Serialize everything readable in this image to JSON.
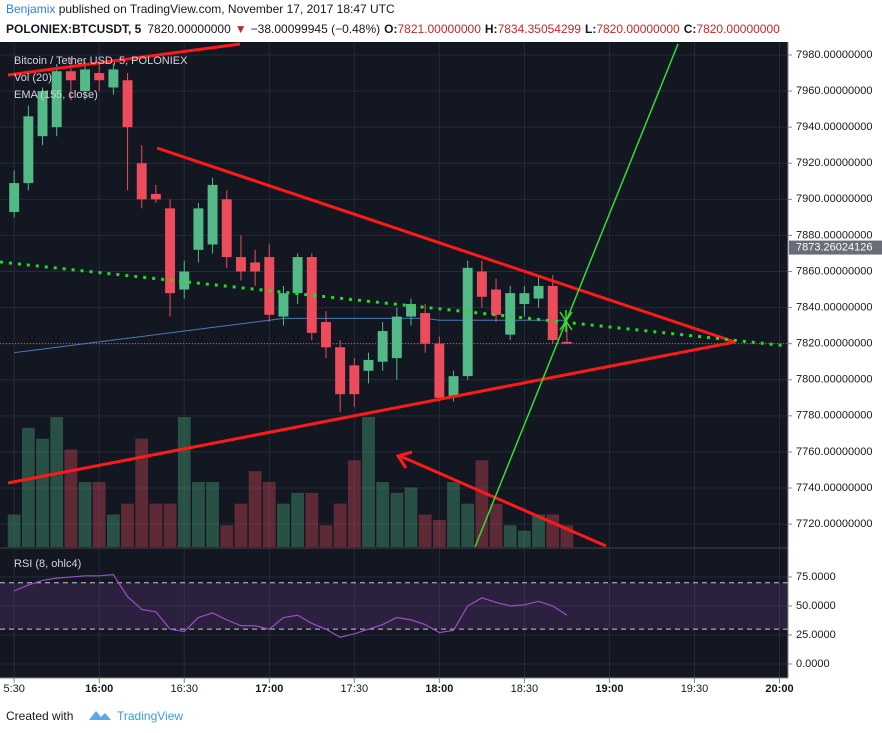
{
  "header": {
    "author": "Benjamix",
    "published": " published on TradingView.com, November 17, 2017 18:47 UTC",
    "symbol": "POLONIEX:BTCUSDT, 5",
    "last": "7820.00000000",
    "arrow": "▼",
    "change": "−38.00099945 (−0.48%)",
    "o_label": "O:",
    "o": "7821.00000000",
    "h_label": "H:",
    "h": "7834.35054299",
    "l_label": "L:",
    "l": "7820.00000000",
    "c_label": "C:",
    "c": "7820.00000000"
  },
  "footer": {
    "created": "Created with",
    "brand": "TradingView"
  },
  "chart_data": [
    {
      "type": "candlestick",
      "title": "Bitcoin / Tether USD, 5, POLONIEX",
      "volume_label": "Vol (20)",
      "ema_label": "EMA (155, close)",
      "x": [
        "15:30",
        "15:35",
        "15:40",
        "15:45",
        "15:50",
        "15:55",
        "16:00",
        "16:05",
        "16:10",
        "16:15",
        "16:20",
        "16:25",
        "16:30",
        "16:35",
        "16:40",
        "16:45",
        "16:50",
        "16:55",
        "17:00",
        "17:05",
        "17:10",
        "17:15",
        "17:20",
        "17:25",
        "17:30",
        "17:35",
        "17:40",
        "17:45",
        "17:50",
        "17:55",
        "18:00",
        "18:05",
        "18:10",
        "18:15",
        "18:20",
        "18:25",
        "18:30",
        "18:35",
        "18:40",
        "18:45"
      ],
      "open": [
        7893,
        7909,
        7935,
        7940,
        7971,
        7960,
        7970,
        7962,
        7966,
        7920,
        7903,
        7895,
        7850,
        7872,
        7875,
        7900,
        7868,
        7865,
        7868,
        7835,
        7848,
        7868,
        7832,
        7818,
        7808,
        7805,
        7810,
        7812,
        7835,
        7837,
        7820,
        7791,
        7802,
        7860,
        7850,
        7825,
        7842,
        7845,
        7852,
        7821
      ],
      "high": [
        7916,
        7952,
        7962,
        7975,
        7978,
        7976,
        7975,
        7975,
        7970,
        7930,
        7908,
        7900,
        7866,
        7898,
        7912,
        7905,
        7880,
        7872,
        7875,
        7852,
        7870,
        7870,
        7838,
        7822,
        7812,
        7815,
        7832,
        7840,
        7845,
        7842,
        7824,
        7805,
        7866,
        7866,
        7856,
        7852,
        7852,
        7858,
        7858,
        7834.35054299
      ],
      "low": [
        7890,
        7905,
        7930,
        7935,
        7955,
        7955,
        7960,
        7958,
        7905,
        7895,
        7898,
        7835,
        7845,
        7865,
        7870,
        7862,
        7855,
        7852,
        7832,
        7830,
        7842,
        7822,
        7812,
        7782,
        7785,
        7798,
        7805,
        7800,
        7830,
        7815,
        7788,
        7788,
        7800,
        7840,
        7832,
        7822,
        7835,
        7840,
        7820,
        7820
      ],
      "close": [
        7909,
        7946,
        7960,
        7971,
        7966,
        7972,
        7966,
        7972,
        7940,
        7900,
        7900,
        7848,
        7860,
        7895,
        7908,
        7868,
        7860,
        7860,
        7836,
        7848,
        7868,
        7826,
        7818,
        7792,
        7792,
        7811,
        7827,
        7835,
        7842,
        7820,
        7790,
        7802,
        7862,
        7846,
        7836,
        7848,
        7848,
        7852,
        7822,
        7820
      ],
      "volume": [
        30,
        110,
        100,
        120,
        90,
        60,
        60,
        30,
        40,
        100,
        40,
        40,
        120,
        60,
        60,
        20,
        40,
        70,
        60,
        40,
        50,
        50,
        20,
        40,
        80,
        120,
        60,
        50,
        55,
        30,
        25,
        60,
        40,
        80,
        40,
        20,
        15,
        30,
        30,
        20
      ],
      "ema": [
        7815,
        7816,
        7817,
        7818,
        7819,
        7820,
        7821,
        7822,
        7823,
        7824,
        7825,
        7826,
        7827,
        7828,
        7829,
        7830,
        7831,
        7832,
        7833,
        7834,
        7834,
        7834,
        7834,
        7834,
        7834,
        7834,
        7834,
        7834,
        7834,
        7834,
        7833,
        7833,
        7833,
        7833,
        7833,
        7833,
        7833,
        7833,
        7833,
        7833
      ],
      "up_color": "#53b987",
      "down_color": "#eb4d5c",
      "ema_color": "#4a7bb7",
      "xlim": [
        "15:25",
        "20:03"
      ],
      "xticks": [
        {
          "value": "15:30",
          "label": "5:30"
        },
        "16:00",
        "16:30",
        "17:00",
        "17:30",
        "18:00",
        "18:30",
        "19:00",
        "19:30",
        "20:00"
      ],
      "ylim": [
        7707.3,
        7987.2
      ],
      "yticks": [
        {
          "value": 7720,
          "label": "7720.00000000"
        },
        {
          "value": 7740,
          "label": "7740.00000000"
        },
        {
          "value": 7760,
          "label": "7760.00000000"
        },
        {
          "value": 7780,
          "label": "7780.00000000"
        },
        {
          "value": 7800,
          "label": "7800.00000000"
        },
        {
          "value": 7820,
          "label": "7820.00000000"
        },
        {
          "value": 7840,
          "label": "7840.00000000"
        },
        {
          "value": 7860,
          "label": "7860.00000000"
        },
        {
          "value": 7880,
          "label": "7880.00000000"
        },
        {
          "value": 7900,
          "label": "7900.00000000"
        },
        {
          "value": 7920,
          "label": "7920.00000000"
        },
        {
          "value": 7940,
          "label": "7940.00000000"
        },
        {
          "value": 7960,
          "label": "7960.00000000"
        },
        {
          "value": 7980,
          "label": "7980.00000000"
        }
      ],
      "crosshair_price": {
        "value": 7873.26024126,
        "label": "7873.26024126"
      },
      "grid": true
    },
    {
      "type": "line",
      "title": "RSI (8, ohlc4)",
      "color": "#9c4fc4",
      "values": [
        63,
        68,
        72,
        74,
        75,
        76,
        76,
        77,
        58,
        47,
        45,
        30,
        28,
        40,
        44,
        38,
        33,
        33,
        30,
        40,
        42,
        35,
        30,
        23,
        26,
        30,
        34,
        40,
        38,
        34,
        27,
        29,
        50,
        57,
        53,
        50,
        51,
        54,
        50,
        42
      ],
      "band": [
        30,
        70
      ],
      "ylim": [
        -12.1,
        99.1
      ],
      "yticks": [
        {
          "value": 0,
          "label": "0.0000"
        },
        {
          "value": 25,
          "label": "25.0000"
        },
        {
          "value": 50,
          "label": "50.0000"
        },
        {
          "value": 75,
          "label": "75.0000"
        }
      ],
      "grid": true
    }
  ]
}
